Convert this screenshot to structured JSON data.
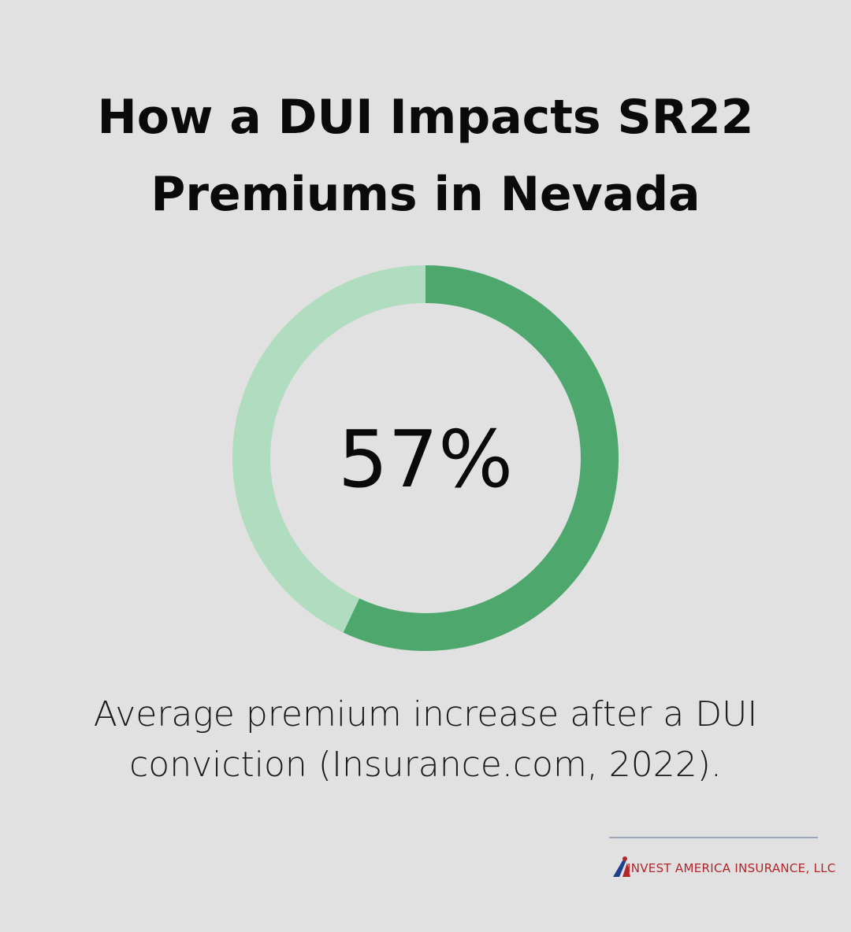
{
  "chart_data": {
    "type": "donut",
    "title": "How a DUI Impacts SR22 Premiums in Nevada",
    "values": [
      57
    ],
    "value_labels": [
      "57%"
    ],
    "color": "#4ea76d",
    "track_color": "#b0dcc0",
    "caption": "Average premium increase after a DUI conviction (Insurance.com, 2022)."
  },
  "brand": "INVEST AMERICA INSURANCE, LLC"
}
